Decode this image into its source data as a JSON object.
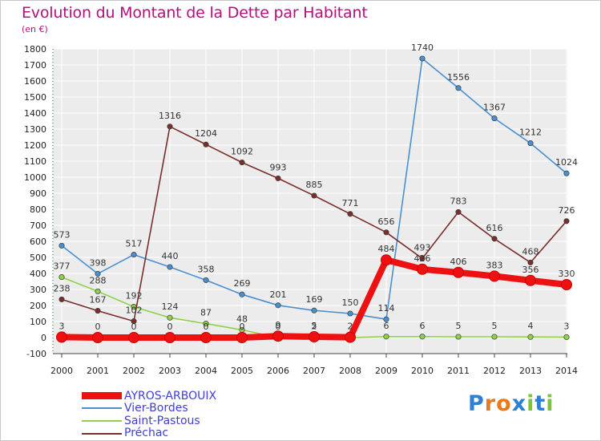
{
  "title": "Evolution du Montant de la Dette par Habitant",
  "unit": "(en €)",
  "brand": {
    "text": "Proxiti",
    "letters": [
      "P",
      "r",
      "o",
      "x",
      "i",
      "t",
      "i"
    ],
    "colors": [
      "#2f7fd3",
      "#e87a1c",
      "#e87a1c",
      "#2f7fd3",
      "#7cc43a",
      "#2f7fd3",
      "#7cc43a"
    ]
  },
  "chart_data": {
    "type": "line",
    "title": "Evolution du Montant de la Dette par Habitant",
    "subtitle": "(en €)",
    "xlabel": "",
    "ylabel": "",
    "x": [
      "2000",
      "2001",
      "2002",
      "2003",
      "2004",
      "2005",
      "2006",
      "2007",
      "2008",
      "2009",
      "2010",
      "2011",
      "2012",
      "2013",
      "2014"
    ],
    "ylim": [
      -100,
      1800
    ],
    "yticks": [
      -100,
      0,
      100,
      200,
      300,
      400,
      500,
      600,
      700,
      800,
      900,
      1000,
      1100,
      1200,
      1300,
      1400,
      1500,
      1600,
      1700,
      1800
    ],
    "grid": true,
    "legend_position": "bottom-left",
    "series": [
      {
        "name": "Vier-Bordes",
        "color": "#4a8fcf",
        "values": [
          573,
          398,
          517,
          440,
          358,
          269,
          201,
          169,
          150,
          114,
          1740,
          1556,
          1367,
          1212,
          1024
        ],
        "labels": [
          "573",
          "398",
          "517",
          "440",
          "358",
          "269",
          "201",
          "169",
          "150",
          "114",
          "1740",
          "1556",
          "1367",
          "1212",
          "1024"
        ]
      },
      {
        "name": "Saint-Pastous",
        "color": "#8fd14a",
        "values": [
          377,
          288,
          192,
          124,
          87,
          48,
          0,
          2,
          0,
          6,
          6,
          5,
          5,
          4,
          3
        ],
        "labels": [
          "377",
          "288",
          "192",
          "124",
          "87",
          "48",
          "0",
          "2",
          "",
          "6",
          "6",
          "5",
          "5",
          "4",
          "3"
        ]
      },
      {
        "name": "Préchac",
        "color": "#7a2e2e",
        "values": [
          238,
          167,
          102,
          1316,
          1204,
          1092,
          993,
          885,
          771,
          656,
          493,
          783,
          616,
          468,
          726
        ],
        "labels": [
          "238",
          "167",
          "102",
          "1316",
          "1204",
          "1092",
          "993",
          "885",
          "771",
          "656",
          "493",
          "783",
          "616",
          "468",
          "726"
        ]
      },
      {
        "name": "AYROS-ARBOUIX",
        "color": "#ee1111",
        "values": [
          3,
          0,
          0,
          0,
          0,
          0,
          9,
          5,
          2,
          484,
          426,
          406,
          383,
          356,
          330
        ],
        "labels": [
          "3",
          "0",
          "0",
          "0",
          "0",
          "0",
          "9",
          "5",
          "2",
          "484",
          "426",
          "406",
          "383",
          "356",
          "330"
        ]
      }
    ],
    "legend": [
      "AYROS-ARBOUIX",
      "Vier-Bordes",
      "Saint-Pastous",
      "Préchac"
    ]
  }
}
